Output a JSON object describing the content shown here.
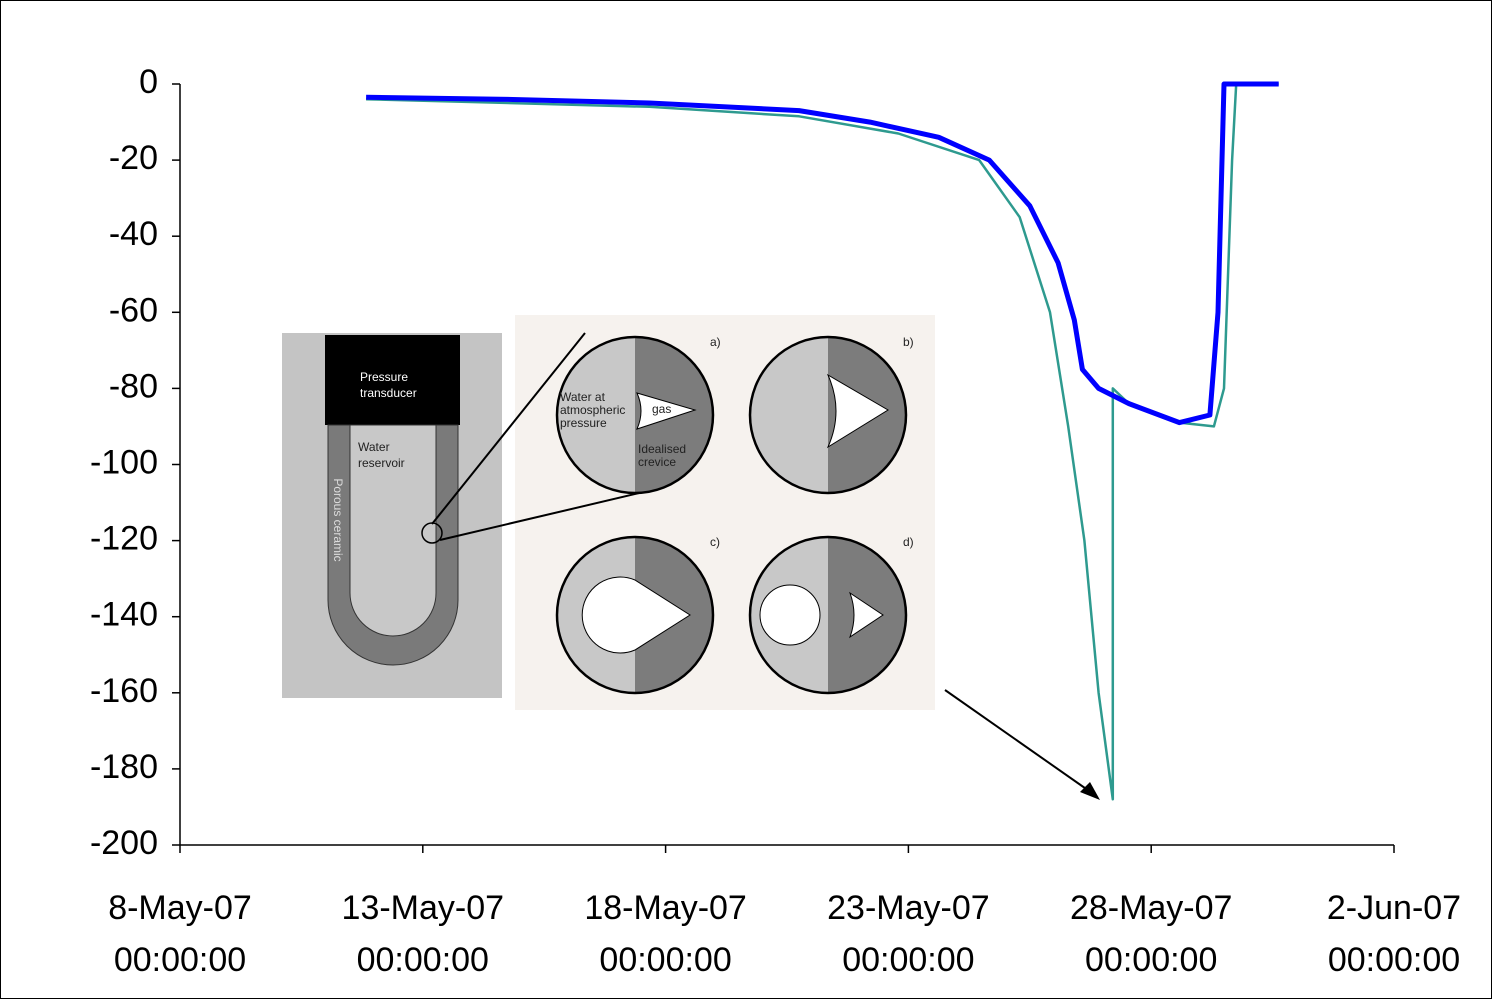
{
  "chart_data": {
    "type": "line",
    "series": [
      {
        "color": "#0000ff",
        "width": 5,
        "x": [
          "2007-05-11T20:00",
          "2007-05-14T14:00",
          "2007-05-17T16:00",
          "2007-05-20T18:00",
          "2007-05-22T05:00",
          "2007-05-23T15:00",
          "2007-05-24T16:00",
          "2007-05-25T12:00",
          "2007-05-26T02:00",
          "2007-05-26T10:00",
          "2007-05-26T14:00",
          "2007-05-26T22:00",
          "2007-05-27T13:00",
          "2007-05-28T14:00",
          "2007-05-29T05:00",
          "2007-05-29T09:00",
          "2007-05-29T11:00",
          "2007-05-29T12:00",
          "2007-05-30T15:00"
        ],
        "values": [
          -3.5,
          -4,
          -5,
          -7,
          -10,
          -14,
          -20,
          -32,
          -47,
          -62,
          -75,
          -80,
          -84,
          -89,
          -87,
          -60,
          -20,
          0,
          0
        ]
      },
      {
        "color": "#2e9a8f",
        "width": 2.5,
        "x": [
          "2007-05-11T20:00",
          "2007-05-17T16:00",
          "2007-05-20T18:00",
          "2007-05-22T19:00",
          "2007-05-24T11:00",
          "2007-05-25T07:00",
          "2007-05-25T22:00",
          "2007-05-26T07:00",
          "2007-05-26T15:00",
          "2007-05-26T22:00",
          "2007-05-27T05:00",
          "2007-05-27T05:00",
          "2007-05-27T13:00",
          "2007-05-28T14:00",
          "2007-05-29T07:00",
          "2007-05-29T12:00",
          "2007-05-29T16:00",
          "2007-05-29T18:00",
          "2007-05-30T15:00"
        ],
        "values": [
          -4,
          -6,
          -8.5,
          -13,
          -20,
          -35,
          -60,
          -90,
          -120,
          -160,
          -188,
          -80,
          -84,
          -89,
          -90,
          -80,
          -20,
          0,
          0
        ]
      }
    ],
    "ylim": [
      -200,
      0
    ],
    "yticks": [
      -200,
      -180,
      -160,
      -140,
      -120,
      -100,
      -80,
      -60,
      -40,
      -20,
      0
    ],
    "xlim": [
      "2007-05-08T00:00",
      "2007-06-02T00:00"
    ],
    "xticks": [
      {
        "value": "2007-05-08T00:00",
        "label": [
          "8-May-07",
          "00:00:00"
        ]
      },
      {
        "value": "2007-05-13T00:00",
        "label": [
          "13-May-07",
          "00:00:00"
        ]
      },
      {
        "value": "2007-05-18T00:00",
        "label": [
          "18-May-07",
          "00:00:00"
        ]
      },
      {
        "value": "2007-05-23T00:00",
        "label": [
          "23-May-07",
          "00:00:00"
        ]
      },
      {
        "value": "2007-05-28T00:00",
        "label": [
          "28-May-07",
          "00:00:00"
        ]
      },
      {
        "value": "2007-06-02T00:00",
        "label": [
          "2-Jun-07",
          "00:00:00"
        ]
      }
    ]
  },
  "inset": {
    "transducer": [
      "Pressure",
      "transducer"
    ],
    "reservoir": [
      "Water",
      "reservoir"
    ],
    "ceramic": "Porous ceramic",
    "water": [
      "Water at",
      "atmospheric",
      "pressure"
    ],
    "gas": "gas",
    "crevice": [
      "Idealised",
      "crevice"
    ],
    "panels": [
      "a)",
      "b)",
      "c)",
      "d)"
    ]
  }
}
